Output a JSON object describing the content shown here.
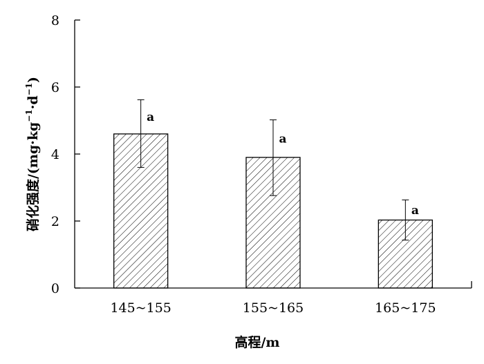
{
  "chart_data": {
    "type": "bar",
    "categories": [
      "145~155",
      "155~165",
      "165~175"
    ],
    "values": [
      4.6,
      3.9,
      2.03
    ],
    "error_upper": [
      5.62,
      5.02,
      2.63
    ],
    "error_lower": [
      3.6,
      2.76,
      1.43
    ],
    "significance": [
      "a",
      "a",
      "a"
    ],
    "xlabel": "高程/m",
    "ylabel_parts": {
      "prefix": "硝化强度/(mg·kg",
      "sup1": "−1",
      "middle": "·d",
      "sup2": "−1",
      "suffix": ")"
    },
    "yticks": [
      0,
      2,
      4,
      6,
      8
    ],
    "ylim": [
      0,
      8
    ],
    "bar_fill": "hatched",
    "grid": false,
    "colors": {
      "bar_stroke": "#000000",
      "hatch": "#000000",
      "background": "#ffffff"
    }
  }
}
